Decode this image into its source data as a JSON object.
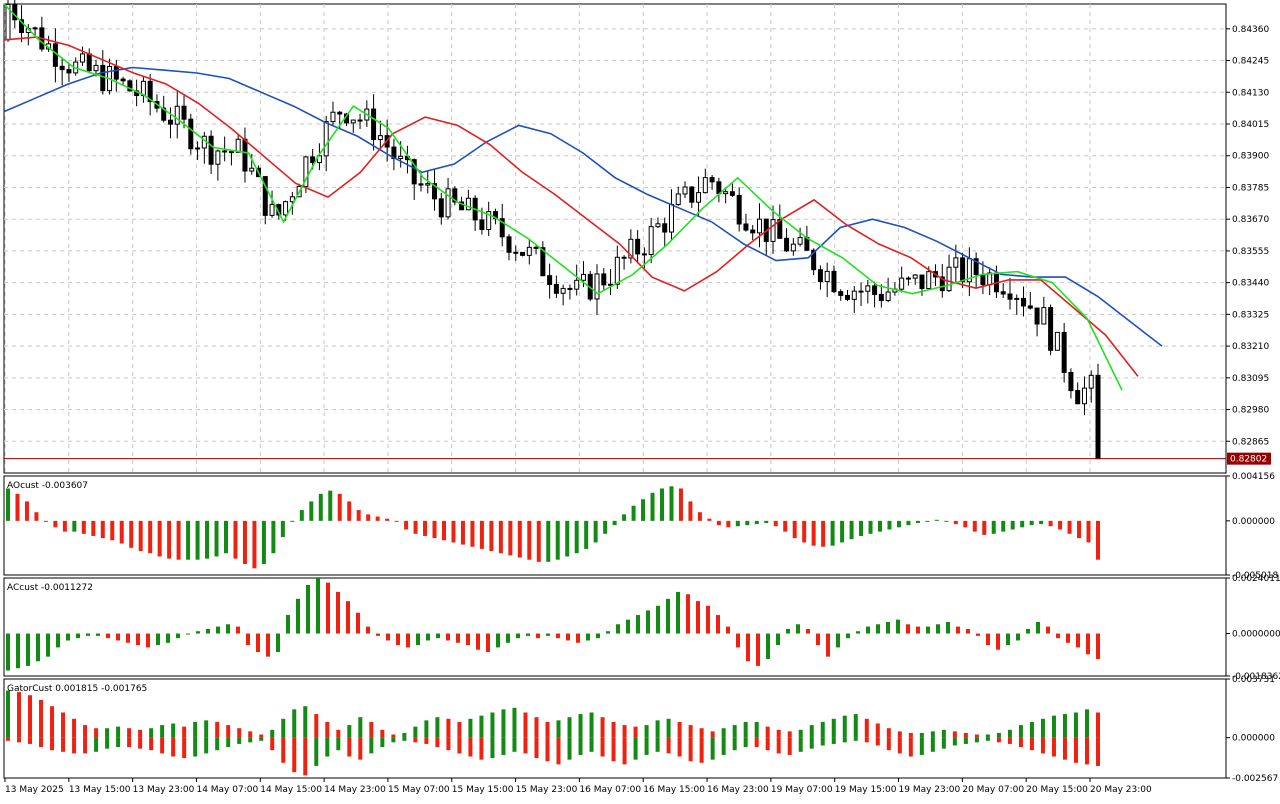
{
  "colors": {
    "bull_candle": "#ffffff",
    "bear_candle": "#000000",
    "jaw": "#1f4fbf",
    "teeth": "#e02020",
    "lips": "#20e020",
    "up_bar": "#138a13",
    "down_bar": "#ee2211",
    "price_line": "#990000",
    "grid": "#c8c8c8"
  },
  "chart_data": [
    {
      "type": "candlestick",
      "panel": "main",
      "grid": true,
      "ylim": [
        0.8275,
        0.8445
      ],
      "y_ticks": [
        "0.84360",
        "0.84245",
        "0.84130",
        "0.84015",
        "0.83900",
        "0.83785",
        "0.83670",
        "0.83555",
        "0.83440",
        "0.83325",
        "0.83210",
        "0.83095",
        "0.82980",
        "0.82865"
      ],
      "current_price": "0.82802",
      "x_ticks": [
        "13 May 2025",
        "13 May 15:00",
        "13 May 23:00",
        "14 May 07:00",
        "14 May 15:00",
        "14 May 23:00",
        "15 May 07:00",
        "15 May 15:00",
        "15 May 23:00",
        "16 May 07:00",
        "16 May 15:00",
        "16 May 23:00",
        "19 May 07:00",
        "19 May 15:00",
        "19 May 23:00",
        "20 May 07:00",
        "20 May 15:00",
        "20 May 23:00"
      ],
      "series": [
        {
          "kind": "alligator-jaw",
          "values": [
            0.8406,
            0.8411,
            0.8416,
            0.842,
            0.8422,
            0.8421,
            0.842,
            0.8418,
            0.8413,
            0.8408,
            0.8402,
            0.8397,
            0.839,
            0.8384,
            0.8387,
            0.8395,
            0.8401,
            0.8398,
            0.8391,
            0.8382,
            0.8376,
            0.8371,
            0.8366,
            0.8358,
            0.8352,
            0.8353,
            0.8364,
            0.8367,
            0.8364,
            0.8359,
            0.8353,
            0.8347,
            0.8346,
            0.8346,
            0.8339,
            0.833,
            0.8321
          ]
        },
        {
          "kind": "alligator-teeth",
          "values": [
            0.8432,
            0.8433,
            0.843,
            0.8425,
            0.842,
            0.8416,
            0.8409,
            0.84,
            0.839,
            0.838,
            0.8375,
            0.8384,
            0.8398,
            0.8404,
            0.8401,
            0.8394,
            0.8384,
            0.8376,
            0.8367,
            0.8358,
            0.8346,
            0.8341,
            0.8348,
            0.8358,
            0.8367,
            0.8374,
            0.8365,
            0.8358,
            0.8353,
            0.8345,
            0.8342,
            0.8345,
            0.8345,
            0.8335,
            0.8325,
            0.831
          ]
        },
        {
          "kind": "alligator-lips",
          "values": [
            0.8445,
            0.8432,
            0.8422,
            0.8418,
            0.8412,
            0.8403,
            0.8393,
            0.8391,
            0.8366,
            0.839,
            0.8408,
            0.84,
            0.8382,
            0.8373,
            0.8368,
            0.836,
            0.835,
            0.834,
            0.8347,
            0.8358,
            0.8371,
            0.8382,
            0.837,
            0.836,
            0.8353,
            0.8343,
            0.834,
            0.8343,
            0.8347,
            0.8348,
            0.8344,
            0.8331,
            0.8305
          ]
        }
      ]
    },
    {
      "type": "bar",
      "panel": "AO",
      "label": "AOcust -0.003607",
      "ylim": [
        -0.005018,
        0.004156
      ],
      "y_ticks": [
        "0.004156",
        "0.000000",
        "-0.005018"
      ],
      "values": [
        0.003,
        0.0025,
        0.0018,
        0.0008,
        0.0,
        -0.0006,
        -0.001,
        -0.001,
        -0.0012,
        -0.0014,
        -0.0016,
        -0.0018,
        -0.0021,
        -0.0025,
        -0.0028,
        -0.003,
        -0.0033,
        -0.0035,
        -0.0036,
        -0.0036,
        -0.0036,
        -0.0035,
        -0.0033,
        -0.003,
        -0.0035,
        -0.004,
        -0.0044,
        -0.004,
        -0.003,
        -0.0015,
        0.0,
        0.001,
        0.0018,
        0.0025,
        0.0028,
        0.0025,
        0.0018,
        0.001,
        0.0006,
        0.0004,
        0.0002,
        0.0,
        -0.0008,
        -0.0012,
        -0.0014,
        -0.0016,
        -0.0018,
        -0.002,
        -0.0022,
        -0.0024,
        -0.0026,
        -0.0028,
        -0.003,
        -0.0032,
        -0.0034,
        -0.0036,
        -0.0038,
        -0.0038,
        -0.0036,
        -0.0033,
        -0.003,
        -0.0026,
        -0.002,
        -0.0012,
        -0.0004,
        0.0006,
        0.0014,
        0.002,
        0.0026,
        0.003,
        0.0032,
        0.003,
        0.0018,
        0.0008,
        0.0002,
        -0.0004,
        -0.0006,
        -0.0005,
        -0.0004,
        -0.0003,
        -0.0002,
        -0.0005,
        -0.001,
        -0.0016,
        -0.002,
        -0.0023,
        -0.0024,
        -0.0023,
        -0.002,
        -0.0017,
        -0.0014,
        -0.0012,
        -0.001,
        -0.0008,
        -0.0006,
        -0.0004,
        -0.0002,
        0.0,
        0.0001,
        0.0,
        -0.0003,
        -0.0006,
        -0.001,
        -0.0013,
        -0.0012,
        -0.001,
        -0.0008,
        -0.0006,
        -0.0004,
        -0.0003,
        -0.0005,
        -0.0008,
        -0.0012,
        -0.0016,
        -0.002,
        -0.0036
      ]
    },
    {
      "type": "bar",
      "panel": "AC",
      "label": "ACcust -0.0011272",
      "ylim": [
        -0.0018362,
        0.0024011
      ],
      "y_ticks": [
        "0.0024011",
        "0.0000000",
        "-0.0018362"
      ],
      "values": [
        -0.0016,
        -0.0015,
        -0.0014,
        -0.0012,
        -0.001,
        -0.0006,
        -0.0003,
        -0.0002,
        -0.0001,
        -0.0001,
        -0.0002,
        -0.0003,
        -0.0004,
        -0.0005,
        -0.0006,
        -0.0005,
        -0.0004,
        -0.0002,
        0.0,
        0.0001,
        0.0002,
        0.0003,
        0.0004,
        0.0003,
        -0.0005,
        -0.0008,
        -0.001,
        -0.0008,
        0.0008,
        0.0015,
        0.0021,
        0.0024,
        0.0022,
        0.0018,
        0.0014,
        0.0009,
        0.0003,
        -0.0001,
        -0.0003,
        -0.0005,
        -0.0006,
        -0.0005,
        -0.0003,
        -0.0002,
        -0.0003,
        -0.0004,
        -0.0005,
        -0.0007,
        -0.0008,
        -0.0006,
        -0.0004,
        -0.0002,
        -0.0001,
        -0.0002,
        -0.0001,
        -0.0002,
        -0.0003,
        -0.0004,
        -0.0003,
        -0.0002,
        0.0001,
        0.0004,
        0.0006,
        0.0008,
        0.001,
        0.0012,
        0.0015,
        0.0018,
        0.0017,
        0.0014,
        0.0012,
        0.0008,
        0.0003,
        -0.0006,
        -0.0012,
        -0.0014,
        -0.0011,
        -0.0005,
        0.0002,
        0.0004,
        0.0002,
        -0.0005,
        -0.001,
        -0.0006,
        -0.0002,
        0.0001,
        0.0003,
        0.0004,
        0.0005,
        0.0006,
        0.0004,
        0.0003,
        0.0003,
        0.0004,
        0.0005,
        0.0003,
        0.0002,
        -0.0001,
        -0.0005,
        -0.0007,
        -0.0005,
        -0.0003,
        0.0002,
        0.0005,
        0.0003,
        -0.0002,
        -0.0004,
        -0.0006,
        -0.0009,
        -0.0011
      ]
    },
    {
      "type": "bar",
      "panel": "Gator",
      "label": "GatorCust 0.001815 -0.001765",
      "ylim": [
        -0.002567,
        0.003731
      ],
      "y_ticks": [
        "0.003731",
        "0.000000",
        "-0.002567"
      ],
      "series": [
        {
          "name": "upper",
          "values": [
            0.003,
            0.0029,
            0.0027,
            0.0024,
            0.002,
            0.0016,
            0.0012,
            0.0008,
            0.0006,
            0.0006,
            0.0007,
            0.0006,
            0.0005,
            0.0006,
            0.0008,
            0.0009,
            0.0007,
            0.001,
            0.0011,
            0.001,
            0.0008,
            0.0006,
            0.0004,
            0.0002,
            0.0005,
            0.0012,
            0.0018,
            0.002,
            0.0015,
            0.001,
            0.0005,
            0.0008,
            0.0013,
            0.001,
            0.0005,
            0.0002,
            0.0003,
            0.0007,
            0.0011,
            0.0013,
            0.0012,
            0.001,
            0.0012,
            0.0014,
            0.0016,
            0.0018,
            0.0019,
            0.0016,
            0.0013,
            0.001,
            0.0011,
            0.0013,
            0.0015,
            0.0016,
            0.0013,
            0.001,
            0.0008,
            0.0007,
            0.0008,
            0.0011,
            0.0012,
            0.001,
            0.0008,
            0.0006,
            0.0004,
            0.0006,
            0.0008,
            0.001,
            0.001,
            0.0007,
            0.0005,
            0.0004,
            0.0005,
            0.0008,
            0.001,
            0.0012,
            0.0014,
            0.0015,
            0.0012,
            0.0009,
            0.0006,
            0.0004,
            0.0003,
            0.0003,
            0.0004,
            0.0005,
            0.0004,
            0.0003,
            0.0002,
            0.0002,
            0.0003,
            0.0005,
            0.0008,
            0.001,
            0.0012,
            0.0014,
            0.0015,
            0.0016,
            0.0018,
            0.0016
          ]
        },
        {
          "name": "lower",
          "values": [
            -0.0002,
            -0.0003,
            -0.0004,
            -0.0006,
            -0.0008,
            -0.0009,
            -0.001,
            -0.001,
            -0.0009,
            -0.0007,
            -0.0006,
            -0.0006,
            -0.0007,
            -0.0008,
            -0.001,
            -0.0012,
            -0.0013,
            -0.0012,
            -0.001,
            -0.0008,
            -0.0006,
            -0.0004,
            -0.0003,
            -0.0002,
            -0.0008,
            -0.0016,
            -0.0022,
            -0.0024,
            -0.0018,
            -0.0012,
            -0.0008,
            -0.0012,
            -0.0014,
            -0.001,
            -0.0006,
            -0.0003,
            -0.0002,
            -0.0003,
            -0.0004,
            -0.0006,
            -0.0008,
            -0.001,
            -0.0012,
            -0.0014,
            -0.0013,
            -0.0011,
            -0.0009,
            -0.001,
            -0.0013,
            -0.0015,
            -0.0017,
            -0.0014,
            -0.0011,
            -0.0009,
            -0.0012,
            -0.0015,
            -0.0017,
            -0.0014,
            -0.0011,
            -0.0009,
            -0.001,
            -0.0012,
            -0.0015,
            -0.0016,
            -0.0014,
            -0.0011,
            -0.0008,
            -0.0006,
            -0.0006,
            -0.0008,
            -0.001,
            -0.0011,
            -0.0009,
            -0.0007,
            -0.0005,
            -0.0004,
            -0.0003,
            -0.0002,
            -0.0003,
            -0.0005,
            -0.0008,
            -0.001,
            -0.0012,
            -0.0011,
            -0.0009,
            -0.0007,
            -0.0005,
            -0.0004,
            -0.0003,
            -0.0002,
            -0.0003,
            -0.0004,
            -0.0006,
            -0.0008,
            -0.001,
            -0.0012,
            -0.0014,
            -0.0016,
            -0.0017,
            -0.0018
          ]
        }
      ]
    }
  ]
}
